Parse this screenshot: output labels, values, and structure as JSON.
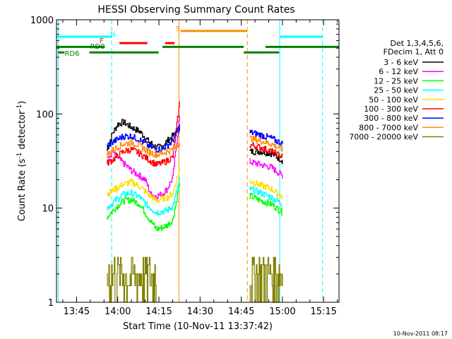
{
  "chart_data": {
    "type": "line",
    "title": "HESSI Observing Summary Count Rates",
    "xlabel": "Start Time (10-Nov-11 13:37:42)",
    "ylabel_main": "Count Rate (s",
    "ylabel_sup1": "-1",
    "ylabel_mid": " detector",
    "ylabel_sup2": "-1",
    "ylabel_end": ")",
    "x_ticks": [
      "13:45",
      "14:00",
      "14:15",
      "14:30",
      "14:45",
      "15:00",
      "15:15"
    ],
    "x_tick_minutes": [
      825,
      840,
      855,
      870,
      885,
      900,
      915
    ],
    "xlim_minutes": [
      817.7,
      920.6
    ],
    "y_ticks": [
      "1",
      "10",
      "100",
      "1000"
    ],
    "y_tick_values": [
      1,
      10,
      100,
      1000
    ],
    "ylim": [
      1,
      1000
    ],
    "y_scale": "log",
    "footer_date": "10-Nov-2011 08:17",
    "legend": {
      "header1": "Det 1,3,4,5,6,",
      "header2": "FDecim 1, Att 0",
      "placement": "right"
    },
    "series": [
      {
        "name": "3 - 6 keV",
        "color": "#000000",
        "seg1": [
          [
            836,
            41
          ],
          [
            838,
            62
          ],
          [
            840,
            78
          ],
          [
            842,
            82
          ],
          [
            845,
            72
          ],
          [
            848,
            65
          ],
          [
            851,
            52
          ],
          [
            854,
            44
          ],
          [
            856,
            45
          ],
          [
            858,
            52
          ],
          [
            861,
            62
          ],
          [
            862.5,
            72
          ]
        ],
        "seg2": [
          [
            888,
            40
          ],
          [
            892,
            40
          ],
          [
            896,
            38
          ],
          [
            900,
            32
          ]
        ]
      },
      {
        "name": "6 - 12 keV",
        "color": "#ff00ff",
        "seg1": [
          [
            836,
            30
          ],
          [
            838,
            40
          ],
          [
            840,
            34
          ],
          [
            842,
            30
          ],
          [
            845,
            25
          ],
          [
            848,
            22
          ],
          [
            850,
            20
          ],
          [
            852,
            14
          ],
          [
            854,
            13.5
          ],
          [
            856,
            14
          ],
          [
            858,
            16
          ],
          [
            860,
            21
          ],
          [
            862.5,
            95
          ]
        ],
        "seg2": [
          [
            888,
            31
          ],
          [
            892,
            29
          ],
          [
            896,
            27
          ],
          [
            900,
            22
          ]
        ]
      },
      {
        "name": "12 - 25 keV",
        "color": "#00ff00",
        "seg1": [
          [
            836,
            8
          ],
          [
            839,
            10
          ],
          [
            842,
            12
          ],
          [
            845,
            12.3
          ],
          [
            848,
            11
          ],
          [
            851,
            8
          ],
          [
            854,
            6
          ],
          [
            856,
            6.2
          ],
          [
            858,
            6.6
          ],
          [
            860,
            7.5
          ],
          [
            862.5,
            18
          ]
        ],
        "seg2": [
          [
            888,
            13.5
          ],
          [
            892,
            12
          ],
          [
            896,
            11
          ],
          [
            900,
            9
          ]
        ]
      },
      {
        "name": "25 - 50 keV",
        "color": "#00ffff",
        "seg1": [
          [
            836,
            10
          ],
          [
            839,
            12
          ],
          [
            842,
            14
          ],
          [
            845,
            14.5
          ],
          [
            848,
            13
          ],
          [
            851,
            10.5
          ],
          [
            854,
            9
          ],
          [
            856,
            9.2
          ],
          [
            858,
            9.5
          ],
          [
            860,
            10.5
          ],
          [
            862.5,
            20
          ]
        ],
        "seg2": [
          [
            888,
            16
          ],
          [
            892,
            14.5
          ],
          [
            896,
            13
          ],
          [
            900,
            11
          ]
        ]
      },
      {
        "name": "50 - 100 keV",
        "color": "#ffdd00",
        "seg1": [
          [
            836,
            14
          ],
          [
            839,
            16
          ],
          [
            842,
            18
          ],
          [
            845,
            19
          ],
          [
            848,
            17
          ],
          [
            851,
            14
          ],
          [
            854,
            12
          ],
          [
            856,
            12.5
          ],
          [
            858,
            13
          ],
          [
            860,
            14.5
          ],
          [
            862.5,
            26
          ]
        ],
        "seg2": [
          [
            888,
            19.5
          ],
          [
            892,
            17.5
          ],
          [
            896,
            16
          ],
          [
            900,
            13
          ]
        ]
      },
      {
        "name": "100 - 300 keV",
        "color": "#ff0000",
        "seg1": [
          [
            836,
            30
          ],
          [
            839,
            34
          ],
          [
            842,
            40
          ],
          [
            845,
            42
          ],
          [
            848,
            38
          ],
          [
            851,
            33
          ],
          [
            854,
            29
          ],
          [
            856,
            30
          ],
          [
            858,
            32
          ],
          [
            860,
            35
          ],
          [
            862.5,
            130
          ]
        ],
        "seg2": [
          [
            888,
            47
          ],
          [
            892,
            44
          ],
          [
            896,
            40
          ],
          [
            900,
            35
          ]
        ]
      },
      {
        "name": "300 - 800 keV",
        "color": "#0000ff",
        "seg1": [
          [
            836,
            46
          ],
          [
            839,
            52
          ],
          [
            842,
            58
          ],
          [
            845,
            58
          ],
          [
            848,
            53
          ],
          [
            851,
            46
          ],
          [
            854,
            42
          ],
          [
            856,
            43
          ],
          [
            858,
            46
          ],
          [
            860,
            52
          ],
          [
            862.5,
            75
          ]
        ],
        "seg2": [
          [
            888,
            64
          ],
          [
            892,
            60
          ],
          [
            896,
            55
          ],
          [
            900,
            48
          ]
        ]
      },
      {
        "name": "800 - 7000 keV",
        "color": "#ff8c00",
        "seg1": [
          [
            836,
            37
          ],
          [
            839,
            43
          ],
          [
            842,
            48
          ],
          [
            845,
            50
          ],
          [
            848,
            46
          ],
          [
            851,
            40
          ],
          [
            854,
            37
          ],
          [
            856,
            38
          ],
          [
            858,
            40
          ],
          [
            860,
            42
          ],
          [
            862.5,
            50
          ]
        ],
        "seg2": [
          [
            888,
            55
          ],
          [
            892,
            52
          ],
          [
            896,
            48
          ],
          [
            900,
            42
          ]
        ]
      },
      {
        "name": "7000 - 20000 keV",
        "color": "#808000",
        "seg1": [
          [
            836,
            1.5
          ],
          [
            839,
            2.3
          ],
          [
            842,
            2.8
          ],
          [
            845,
            2.6
          ],
          [
            848,
            2.2
          ],
          [
            851,
            1.7
          ],
          [
            854,
            1.4
          ]
        ],
        "seg2": [
          [
            888,
            2.8
          ],
          [
            892,
            2.2
          ],
          [
            896,
            1.8
          ],
          [
            900,
            1.3
          ]
        ]
      }
    ],
    "flags": [
      {
        "label": "N",
        "color": "#00ffff",
        "y": 660,
        "segments": [
          [
            817.7,
            837.8
          ],
          [
            899.2,
            914.6
          ]
        ]
      },
      {
        "label": "F",
        "color": "#ff0000",
        "y": 565,
        "segments": [
          [
            840.6,
            850.8
          ],
          [
            857.3,
            860.7
          ]
        ]
      },
      {
        "label": "S",
        "color": "#ff8c00",
        "y": 760,
        "segments": [
          [
            862.9,
            887.2
          ]
        ]
      },
      {
        "label": "RD0",
        "color": "#008000",
        "y": 515,
        "segments": [
          [
            817.7,
            835.3
          ],
          [
            856.3,
            885.9
          ],
          [
            893.8,
            920.6
          ]
        ]
      },
      {
        "label": "RD6",
        "color": "#008000",
        "y": 450,
        "segments": [
          [
            818.2,
            820.6
          ],
          [
            829.7,
            854.9
          ],
          [
            885.9,
            898.8
          ]
        ]
      }
    ],
    "vlines": [
      {
        "minute": 837.8,
        "color": "#00ffff",
        "style": "dashed"
      },
      {
        "minute": 818.3,
        "color": "#00ffff",
        "style": "solid"
      },
      {
        "minute": 862.3,
        "color": "#ff8c00",
        "style": "solid"
      },
      {
        "minute": 887.2,
        "color": "#ff8c00",
        "style": "dashed"
      },
      {
        "minute": 899.0,
        "color": "#00ffff",
        "style": "solid"
      },
      {
        "minute": 914.6,
        "color": "#00ffff",
        "style": "dashed"
      }
    ]
  }
}
